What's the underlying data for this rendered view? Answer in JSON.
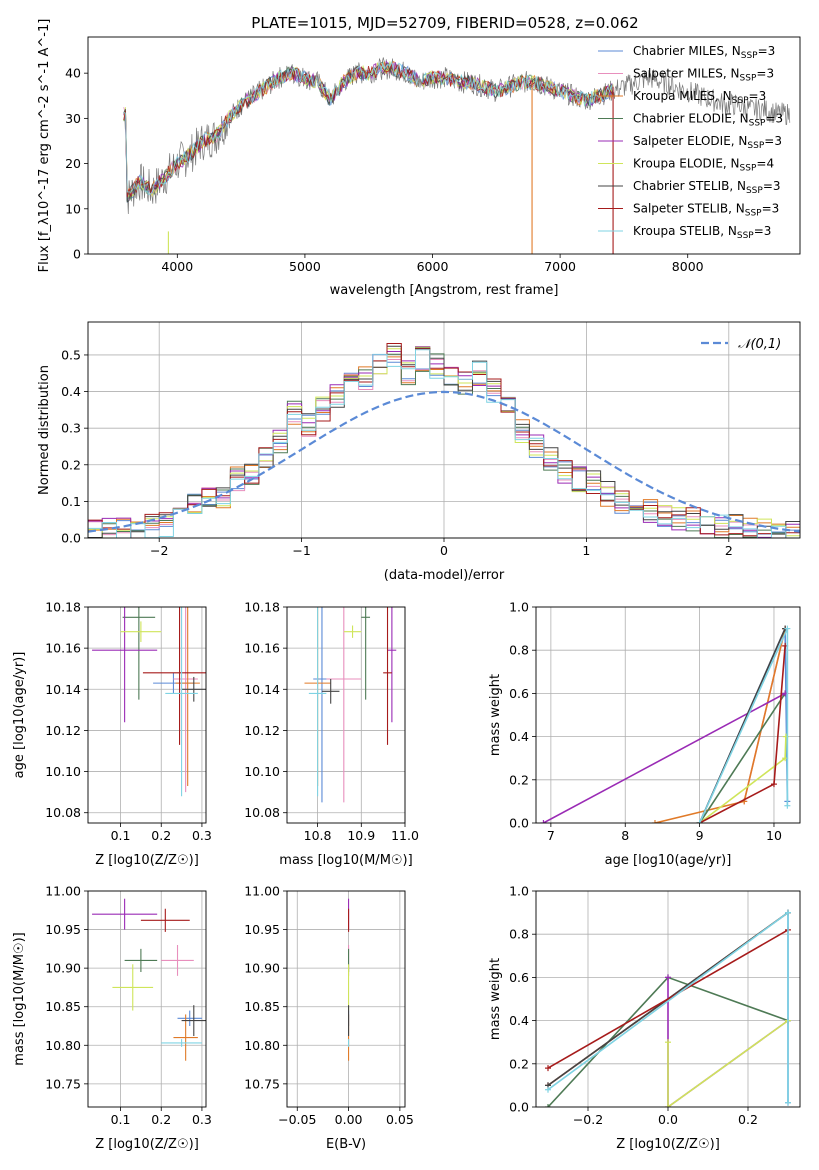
{
  "figure": {
    "title": "PLATE=1015, MJD=52709, FIBERID=0528, z=0.062"
  },
  "colors": {
    "Chabrier MILES": "#5b8ad6",
    "Salpeter MILES": "#e88fbd",
    "Kroupa MILES": "#e07a28",
    "Chabrier ELODIE": "#4e7a55",
    "Salpeter ELODIE": "#9a2bb5",
    "Kroupa ELODIE": "#cfe55a",
    "Chabrier STELIB": "#444444",
    "Salpeter STELIB": "#a61b1b",
    "Kroupa STELIB": "#7fd3e3",
    "data": "#7a7a7a",
    "normal": "#5b8ad6"
  },
  "chart_data": [
    {
      "id": "spectrum",
      "type": "line",
      "xlabel": "wavelength [Angstrom, rest frame]",
      "ylabel": "Flux [f_λ10^-17 erg cm^-2 s^-1 A^-1]",
      "xlim": [
        3300,
        8880
      ],
      "ylim": [
        0,
        48
      ],
      "xticks": [
        4000,
        5000,
        6000,
        7000,
        8000
      ],
      "yticks": [
        0,
        10,
        20,
        30,
        40
      ],
      "grid": false,
      "legend_position": "top-right",
      "legend": [
        {
          "model": "Chabrier MILES",
          "nssp": "3"
        },
        {
          "model": "Salpeter MILES",
          "nssp": "3"
        },
        {
          "model": "Kroupa MILES",
          "nssp": "3"
        },
        {
          "model": "Chabrier ELODIE",
          "nssp": "3"
        },
        {
          "model": "Salpeter ELODIE",
          "nssp": "3"
        },
        {
          "model": "Kroupa ELODIE",
          "nssp": "4"
        },
        {
          "model": "Chabrier STELIB",
          "nssp": "3"
        },
        {
          "model": "Salpeter STELIB",
          "nssp": "3"
        },
        {
          "model": "Kroupa STELIB",
          "nssp": "3"
        }
      ],
      "continuum": [
        [
          3600,
          12
        ],
        [
          3700,
          16
        ],
        [
          3800,
          14
        ],
        [
          3900,
          17
        ],
        [
          4000,
          20
        ],
        [
          4100,
          22
        ],
        [
          4200,
          25
        ],
        [
          4300,
          26
        ],
        [
          4400,
          30
        ],
        [
          4500,
          33
        ],
        [
          4600,
          35
        ],
        [
          4700,
          37
        ],
        [
          4800,
          39
        ],
        [
          4900,
          40
        ],
        [
          5000,
          39
        ],
        [
          5100,
          38
        ],
        [
          5200,
          34
        ],
        [
          5300,
          38
        ],
        [
          5400,
          40
        ],
        [
          5500,
          40
        ],
        [
          5600,
          41
        ],
        [
          5700,
          41
        ],
        [
          5800,
          40
        ],
        [
          5900,
          38
        ],
        [
          6000,
          39
        ],
        [
          6100,
          39
        ],
        [
          6200,
          38
        ],
        [
          6300,
          38
        ],
        [
          6400,
          37
        ],
        [
          6500,
          36
        ],
        [
          6600,
          37
        ],
        [
          6700,
          38
        ],
        [
          6800,
          38
        ],
        [
          6900,
          37
        ],
        [
          7000,
          36
        ],
        [
          7100,
          35
        ],
        [
          7200,
          34
        ],
        [
          7300,
          35
        ],
        [
          7400,
          36
        ],
        [
          7500,
          37
        ],
        [
          7600,
          38
        ],
        [
          7700,
          39
        ],
        [
          7800,
          38
        ],
        [
          7900,
          37
        ],
        [
          8000,
          36
        ],
        [
          8100,
          35
        ],
        [
          8200,
          34
        ],
        [
          8300,
          33
        ],
        [
          8400,
          33
        ],
        [
          8500,
          32
        ],
        [
          8600,
          32
        ],
        [
          8700,
          31
        ],
        [
          8800,
          31
        ]
      ]
    },
    {
      "id": "residuals",
      "type": "line",
      "xlabel": "(data-model)/error",
      "ylabel": "Normed distribution",
      "xlim": [
        -2.5,
        2.5
      ],
      "ylim": [
        0,
        0.59
      ],
      "xticks": [
        -2,
        -1,
        0,
        1,
        2
      ],
      "yticks": [
        0.0,
        0.1,
        0.2,
        0.3,
        0.4,
        0.5
      ],
      "grid": true,
      "legend_position": "top-right",
      "normal_label": "𝒩(0,1)",
      "hist_bins": [
        -2.5,
        2.5,
        50
      ],
      "hist_values": [
        0.015,
        0.02,
        0.02,
        0.025,
        0.03,
        0.035,
        0.06,
        0.09,
        0.12,
        0.11,
        0.16,
        0.18,
        0.22,
        0.26,
        0.34,
        0.31,
        0.35,
        0.39,
        0.42,
        0.44,
        0.48,
        0.5,
        0.45,
        0.49,
        0.47,
        0.44,
        0.42,
        0.45,
        0.4,
        0.36,
        0.29,
        0.25,
        0.22,
        0.18,
        0.16,
        0.15,
        0.12,
        0.1,
        0.08,
        0.07,
        0.06,
        0.05,
        0.05,
        0.04,
        0.03,
        0.03,
        0.02,
        0.02,
        0.02,
        0.015
      ]
    },
    {
      "id": "age-vs-z",
      "type": "scatter",
      "xlabel": "Z [log10(Z/Z☉)]",
      "ylabel": "age [log10(age/yr)]",
      "xlim": [
        0.02,
        0.31
      ],
      "ylim": [
        10.075,
        10.18
      ],
      "xticks": [
        0.1,
        0.2,
        0.3
      ],
      "yticks": [
        10.08,
        10.1,
        10.12,
        10.14,
        10.16,
        10.18
      ],
      "grid": true,
      "points": [
        {
          "model": "Chabrier MILES",
          "x": 0.23,
          "xerr": 0.05,
          "y": 10.143,
          "yerr": 0.005
        },
        {
          "model": "Salpeter MILES",
          "x": 0.26,
          "xerr": 0.03,
          "y": 10.145,
          "yerr": 0.055
        },
        {
          "model": "Kroupa MILES",
          "x": 0.265,
          "xerr": 0.03,
          "y": 10.143,
          "yerr": 0.05
        },
        {
          "model": "Chabrier ELODIE",
          "x": 0.145,
          "xerr": 0.04,
          "y": 10.175,
          "yerr": 0.04
        },
        {
          "model": "Salpeter ELODIE",
          "x": 0.11,
          "xerr": 0.08,
          "y": 10.159,
          "yerr": 0.035
        },
        {
          "model": "Kroupa ELODIE",
          "x": 0.15,
          "xerr": 0.05,
          "y": 10.168,
          "yerr": 0.005
        },
        {
          "model": "Chabrier STELIB",
          "x": 0.28,
          "xerr": 0.03,
          "y": 10.14,
          "yerr": 0.006
        },
        {
          "model": "Salpeter STELIB",
          "x": 0.245,
          "xerr": 0.09,
          "y": 10.148,
          "yerr": 0.035
        },
        {
          "model": "Kroupa STELIB",
          "x": 0.25,
          "xerr": 0.04,
          "y": 10.138,
          "yerr": 0.05
        }
      ]
    },
    {
      "id": "age-vs-mass",
      "type": "scatter",
      "xlabel": "mass [log10(M/M☉)]",
      "ylabel": "",
      "xlim": [
        10.73,
        11.0
      ],
      "ylim": [
        10.075,
        10.18
      ],
      "xticks": [
        10.8,
        10.9,
        11.0
      ],
      "yticks": [
        10.08,
        10.1,
        10.12,
        10.14,
        10.16,
        10.18
      ],
      "grid": true,
      "points": [
        {
          "model": "Chabrier MILES",
          "x": 10.81,
          "xerr": 0.02,
          "y": 10.145,
          "yerr": 0.06
        },
        {
          "model": "Salpeter MILES",
          "x": 10.86,
          "xerr": 0.04,
          "y": 10.145,
          "yerr": 0.06
        },
        {
          "model": "Kroupa MILES",
          "x": 10.8,
          "xerr": 0.03,
          "y": 10.143,
          "yerr": 0.05
        },
        {
          "model": "Chabrier ELODIE",
          "x": 10.91,
          "xerr": 0.01,
          "y": 10.175,
          "yerr": 0.04
        },
        {
          "model": "Salpeter ELODIE",
          "x": 10.97,
          "xerr": 0.01,
          "y": 10.159,
          "yerr": 0.035
        },
        {
          "model": "Kroupa ELODIE",
          "x": 10.88,
          "xerr": 0.02,
          "y": 10.168,
          "yerr": 0.003
        },
        {
          "model": "Chabrier STELIB",
          "x": 10.83,
          "xerr": 0.02,
          "y": 10.139,
          "yerr": 0.006
        },
        {
          "model": "Salpeter STELIB",
          "x": 10.96,
          "xerr": 0.01,
          "y": 10.148,
          "yerr": 0.035
        },
        {
          "model": "Kroupa STELIB",
          "x": 10.8,
          "xerr": 0.02,
          "y": 10.138,
          "yerr": 0.05
        }
      ]
    },
    {
      "id": "weight-vs-age",
      "type": "line",
      "xlabel": "age [log10(age/yr)]",
      "ylabel": "mass weight",
      "xlim": [
        6.8,
        10.35
      ],
      "ylim": [
        0,
        1.0
      ],
      "xticks": [
        7,
        8,
        9,
        10
      ],
      "yticks": [
        0.0,
        0.2,
        0.4,
        0.6,
        0.8,
        1.0
      ],
      "grid": true,
      "series": [
        {
          "model": "Chabrier MILES",
          "points": [
            [
              9.0,
              0.0
            ],
            [
              10.15,
              0.9
            ],
            [
              10.18,
              0.1
            ]
          ]
        },
        {
          "model": "Salpeter MILES",
          "points": [
            [
              9.6,
              0.1
            ],
            [
              10.15,
              0.9
            ]
          ]
        },
        {
          "model": "Kroupa MILES",
          "points": [
            [
              8.4,
              0.0
            ],
            [
              9.6,
              0.1
            ],
            [
              10.15,
              0.9
            ]
          ]
        },
        {
          "model": "Chabrier ELODIE",
          "points": [
            [
              9.0,
              0.0
            ],
            [
              10.15,
              0.6
            ]
          ]
        },
        {
          "model": "Salpeter ELODIE",
          "points": [
            [
              6.9,
              0.0
            ],
            [
              10.15,
              0.6
            ]
          ]
        },
        {
          "model": "Kroupa ELODIE",
          "points": [
            [
              9.0,
              0.0
            ],
            [
              10.15,
              0.3
            ],
            [
              10.16,
              0.4
            ]
          ]
        },
        {
          "model": "Chabrier STELIB",
          "points": [
            [
              9.0,
              0.0
            ],
            [
              10.15,
              0.9
            ]
          ]
        },
        {
          "model": "Salpeter STELIB",
          "points": [
            [
              9.0,
              0.0
            ],
            [
              10.0,
              0.18
            ],
            [
              10.15,
              0.82
            ]
          ]
        },
        {
          "model": "Kroupa STELIB",
          "points": [
            [
              9.0,
              0.0
            ],
            [
              10.18,
              0.9
            ],
            [
              10.18,
              0.08
            ]
          ]
        }
      ]
    },
    {
      "id": "mass-vs-z",
      "type": "scatter",
      "xlabel": "Z [log10(Z/Z☉)]",
      "ylabel": "mass [log10(M/M☉)]",
      "xlim": [
        0.02,
        0.31
      ],
      "ylim": [
        10.72,
        11.0
      ],
      "xticks": [
        0.1,
        0.2,
        0.3
      ],
      "yticks": [
        10.75,
        10.8,
        10.85,
        10.9,
        10.95,
        11.0
      ],
      "grid": true,
      "points": [
        {
          "model": "Chabrier MILES",
          "x": 0.27,
          "xerr": 0.03,
          "y": 10.835,
          "yerr": 0.01
        },
        {
          "model": "Salpeter MILES",
          "x": 0.24,
          "xerr": 0.04,
          "y": 10.91,
          "yerr": 0.02
        },
        {
          "model": "Kroupa MILES",
          "x": 0.26,
          "xerr": 0.03,
          "y": 10.81,
          "yerr": 0.03
        },
        {
          "model": "Chabrier ELODIE",
          "x": 0.15,
          "xerr": 0.04,
          "y": 10.91,
          "yerr": 0.015
        },
        {
          "model": "Salpeter ELODIE",
          "x": 0.11,
          "xerr": 0.08,
          "y": 10.97,
          "yerr": 0.02
        },
        {
          "model": "Kroupa ELODIE",
          "x": 0.13,
          "xerr": 0.05,
          "y": 10.875,
          "yerr": 0.03
        },
        {
          "model": "Chabrier STELIB",
          "x": 0.28,
          "xerr": 0.03,
          "y": 10.832,
          "yerr": 0.02
        },
        {
          "model": "Salpeter STELIB",
          "x": 0.21,
          "xerr": 0.06,
          "y": 10.962,
          "yerr": 0.015
        },
        {
          "model": "Kroupa STELIB",
          "x": 0.25,
          "xerr": 0.05,
          "y": 10.803,
          "yerr": 0.005
        }
      ]
    },
    {
      "id": "mass-vs-ebv",
      "type": "scatter",
      "xlabel": "E(B-V)",
      "ylabel": "",
      "xlim": [
        -0.06,
        0.055
      ],
      "ylim": [
        10.72,
        11.0
      ],
      "xticks": [
        -0.05,
        0.0,
        0.05
      ],
      "yticks": [
        10.75,
        10.8,
        10.85,
        10.9,
        10.95,
        11.0
      ],
      "grid": true,
      "points": [
        {
          "model": "Chabrier MILES",
          "x": 0.0,
          "y": 10.835,
          "yerr": 0.01
        },
        {
          "model": "Salpeter MILES",
          "x": 0.0,
          "y": 10.91,
          "yerr": 0.02
        },
        {
          "model": "Kroupa MILES",
          "x": 0.0,
          "y": 10.81,
          "yerr": 0.03
        },
        {
          "model": "Chabrier ELODIE",
          "x": 0.0,
          "y": 10.91,
          "yerr": 0.015
        },
        {
          "model": "Salpeter ELODIE",
          "x": 0.0,
          "y": 10.97,
          "yerr": 0.02
        },
        {
          "model": "Kroupa ELODIE",
          "x": 0.0,
          "y": 10.875,
          "yerr": 0.03
        },
        {
          "model": "Chabrier STELIB",
          "x": 0.0,
          "y": 10.832,
          "yerr": 0.02
        },
        {
          "model": "Salpeter STELIB",
          "x": 0.0,
          "y": 10.962,
          "yerr": 0.015
        },
        {
          "model": "Kroupa STELIB",
          "x": 0.0,
          "y": 10.803,
          "yerr": 0.005
        }
      ]
    },
    {
      "id": "weight-vs-z",
      "type": "line",
      "xlabel": "Z [log10(Z/Z☉)]",
      "ylabel": "mass weight",
      "xlim": [
        -0.33,
        0.33
      ],
      "ylim": [
        0,
        1.0
      ],
      "xticks": [
        -0.2,
        0.0,
        0.2
      ],
      "yticks": [
        0.0,
        0.2,
        0.4,
        0.6,
        0.8,
        1.0
      ],
      "grid": true,
      "series": [
        {
          "model": "Chabrier MILES",
          "points": [
            [
              -0.3,
              0.1
            ],
            [
              0.3,
              0.9
            ],
            [
              0.3,
              0.02
            ]
          ]
        },
        {
          "model": "Salpeter MILES",
          "points": [
            [
              -0.3,
              0.1
            ],
            [
              0.3,
              0.9
            ]
          ]
        },
        {
          "model": "Kroupa MILES",
          "points": [
            [
              -0.3,
              0.1
            ],
            [
              0.3,
              0.9
            ]
          ]
        },
        {
          "model": "Chabrier ELODIE",
          "points": [
            [
              -0.3,
              0.0
            ],
            [
              0.0,
              0.6
            ],
            [
              0.3,
              0.4
            ]
          ]
        },
        {
          "model": "Salpeter ELODIE",
          "points": [
            [
              0.0,
              0.6
            ],
            [
              0.0,
              0.0
            ],
            [
              0.3,
              0.4
            ]
          ]
        },
        {
          "model": "Kroupa ELODIE",
          "points": [
            [
              0.0,
              0.3
            ],
            [
              0.0,
              0.0
            ],
            [
              0.3,
              0.4
            ]
          ]
        },
        {
          "model": "Chabrier STELIB",
          "points": [
            [
              -0.3,
              0.1
            ],
            [
              0.3,
              0.9
            ]
          ]
        },
        {
          "model": "Salpeter STELIB",
          "points": [
            [
              -0.3,
              0.18
            ],
            [
              0.3,
              0.82
            ]
          ]
        },
        {
          "model": "Kroupa STELIB",
          "points": [
            [
              -0.3,
              0.08
            ],
            [
              0.3,
              0.9
            ],
            [
              0.3,
              0.02
            ]
          ]
        }
      ]
    }
  ]
}
